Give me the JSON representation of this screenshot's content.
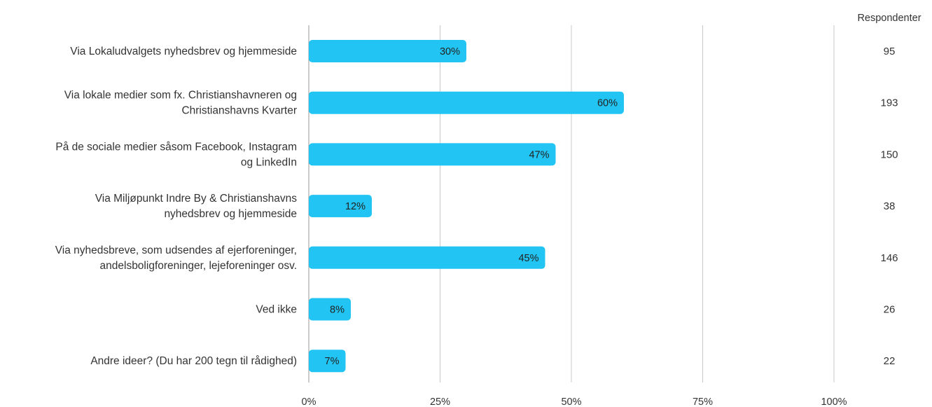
{
  "chart_data": {
    "type": "bar",
    "orientation": "horizontal",
    "categories": [
      [
        "Via Lokaludvalgets nyhedsbrev og hjemmeside"
      ],
      [
        "Via lokale medier som fx. Christianshavneren og",
        "Christianshavns Kvarter"
      ],
      [
        "På de sociale medier såsom Facebook, Instagram",
        "og LinkedIn"
      ],
      [
        "Via Miljøpunkt Indre By & Christianshavns",
        "nyhedsbrev og hjemmeside"
      ],
      [
        "Via nyhedsbreve, som udsendes af ejerforeninger,",
        "andelsboligforeninger, lejeforeninger osv."
      ],
      [
        "Ved ikke"
      ],
      [
        "Andre ideer? (Du har 200 tegn til rådighed)"
      ]
    ],
    "values": [
      30,
      60,
      47,
      12,
      45,
      8,
      7
    ],
    "value_labels": [
      "30%",
      "60%",
      "47%",
      "12%",
      "45%",
      "8%",
      "7%"
    ],
    "respondents_header": "Respondenter",
    "respondents": [
      "95",
      "193",
      "150",
      "38",
      "146",
      "26",
      "22"
    ],
    "xlim": [
      0,
      100
    ],
    "x_ticks": [
      0,
      25,
      50,
      75,
      100
    ],
    "x_tick_labels": [
      "0%",
      "25%",
      "50%",
      "75%",
      "100%"
    ],
    "grid": true,
    "colors": {
      "bar": "#21c4f3",
      "grid": "#c8c8c8",
      "axis": "#999999"
    }
  }
}
